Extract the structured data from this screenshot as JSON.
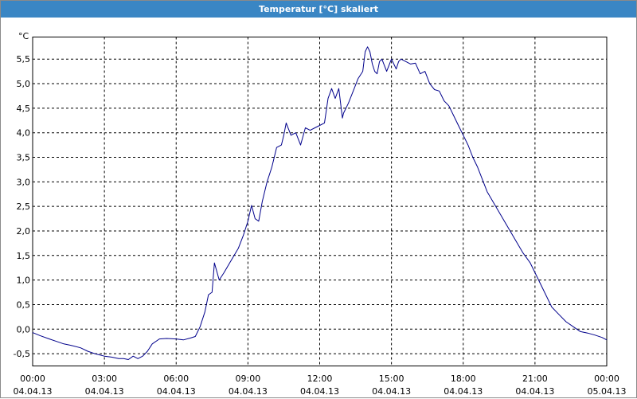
{
  "window": {
    "title": "Temperatur [°C] skaliert"
  },
  "chart_data": {
    "type": "line",
    "title": "Temperatur [°C] skaliert",
    "ylabel": "°C",
    "xlabel": "",
    "ylim": [
      -0.75,
      5.95
    ],
    "xlim": [
      0,
      24
    ],
    "grid": true,
    "yticks": [
      {
        "value": -0.5,
        "label": "-0,5"
      },
      {
        "value": 0.0,
        "label": "0,0"
      },
      {
        "value": 0.5,
        "label": "0,5"
      },
      {
        "value": 1.0,
        "label": "1,0"
      },
      {
        "value": 1.5,
        "label": "1,5"
      },
      {
        "value": 2.0,
        "label": "2,0"
      },
      {
        "value": 2.5,
        "label": "2,5"
      },
      {
        "value": 3.0,
        "label": "3,0"
      },
      {
        "value": 3.5,
        "label": "3,5"
      },
      {
        "value": 4.0,
        "label": "4,0"
      },
      {
        "value": 4.5,
        "label": "4,5"
      },
      {
        "value": 5.0,
        "label": "5,0"
      },
      {
        "value": 5.5,
        "label": "5,5"
      }
    ],
    "xticks": [
      {
        "value": 0,
        "time": "00:00",
        "date": "04.04.13"
      },
      {
        "value": 3,
        "time": "03:00",
        "date": "04.04.13"
      },
      {
        "value": 6,
        "time": "06:00",
        "date": "04.04.13"
      },
      {
        "value": 9,
        "time": "09:00",
        "date": "04.04.13"
      },
      {
        "value": 12,
        "time": "12:00",
        "date": "04.04.13"
      },
      {
        "value": 15,
        "time": "15:00",
        "date": "04.04.13"
      },
      {
        "value": 18,
        "time": "18:00",
        "date": "04.04.13"
      },
      {
        "value": 21,
        "time": "21:00",
        "date": "04.04.13"
      },
      {
        "value": 24,
        "time": "00:00",
        "date": "05.04.13"
      }
    ],
    "series": [
      {
        "color": "#00008b",
        "x": [
          0.0,
          0.3,
          0.7,
          1.0,
          1.3,
          1.6,
          2.0,
          2.3,
          2.6,
          3.0,
          3.3,
          3.6,
          3.8,
          4.0,
          4.2,
          4.4,
          4.6,
          4.8,
          5.0,
          5.3,
          5.6,
          6.0,
          6.3,
          6.6,
          6.8,
          7.0,
          7.2,
          7.35,
          7.5,
          7.6,
          7.8,
          8.0,
          8.3,
          8.6,
          8.8,
          9.0,
          9.15,
          9.3,
          9.45,
          9.6,
          9.8,
          10.0,
          10.2,
          10.4,
          10.5,
          10.6,
          10.8,
          11.0,
          11.2,
          11.4,
          11.6,
          11.8,
          12.0,
          12.2,
          12.35,
          12.5,
          12.65,
          12.8,
          12.95,
          13.0,
          13.2,
          13.4,
          13.6,
          13.8,
          13.9,
          14.0,
          14.1,
          14.2,
          14.3,
          14.4,
          14.5,
          14.6,
          14.8,
          15.0,
          15.1,
          15.2,
          15.3,
          15.4,
          15.6,
          15.8,
          16.0,
          16.2,
          16.4,
          16.6,
          16.8,
          17.0,
          17.2,
          17.4,
          17.6,
          17.8,
          18.0,
          18.2,
          18.4,
          18.6,
          18.8,
          19.0,
          19.3,
          19.6,
          19.9,
          20.2,
          20.5,
          20.8,
          21.1,
          21.4,
          21.7,
          22.0,
          22.3,
          22.6,
          22.9,
          23.2,
          23.5,
          23.8,
          24.0
        ],
        "y": [
          -0.07,
          -0.13,
          -0.2,
          -0.25,
          -0.3,
          -0.33,
          -0.38,
          -0.45,
          -0.5,
          -0.55,
          -0.57,
          -0.6,
          -0.6,
          -0.62,
          -0.55,
          -0.6,
          -0.55,
          -0.45,
          -0.3,
          -0.2,
          -0.19,
          -0.2,
          -0.22,
          -0.18,
          -0.15,
          0.05,
          0.35,
          0.7,
          0.75,
          1.35,
          1.0,
          1.15,
          1.4,
          1.65,
          1.9,
          2.2,
          2.52,
          2.25,
          2.2,
          2.6,
          3.0,
          3.3,
          3.7,
          3.75,
          3.95,
          4.2,
          3.95,
          4.0,
          3.75,
          4.1,
          4.05,
          4.1,
          4.15,
          4.2,
          4.7,
          4.9,
          4.7,
          4.9,
          4.3,
          4.4,
          4.6,
          4.85,
          5.1,
          5.25,
          5.65,
          5.75,
          5.65,
          5.4,
          5.25,
          5.2,
          5.45,
          5.5,
          5.25,
          5.5,
          5.4,
          5.3,
          5.45,
          5.5,
          5.45,
          5.4,
          5.42,
          5.2,
          5.25,
          5.0,
          4.88,
          4.85,
          4.65,
          4.55,
          4.35,
          4.15,
          3.95,
          3.75,
          3.5,
          3.3,
          3.05,
          2.8,
          2.55,
          2.3,
          2.05,
          1.8,
          1.55,
          1.35,
          1.05,
          0.75,
          0.45,
          0.3,
          0.15,
          0.05,
          -0.05,
          -0.08,
          -0.12,
          -0.17,
          -0.22
        ]
      }
    ]
  }
}
